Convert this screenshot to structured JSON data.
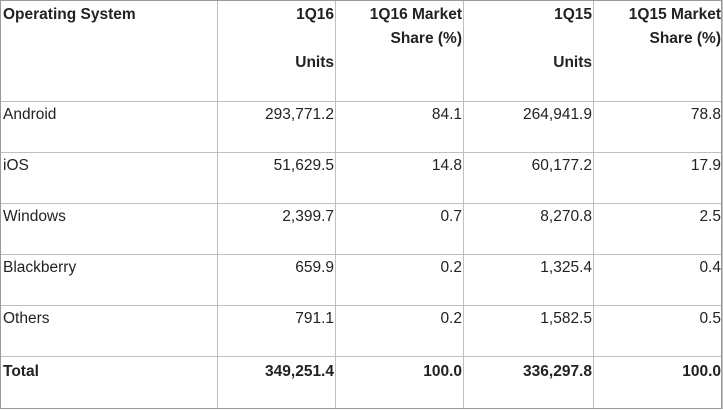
{
  "chart_data": {
    "type": "table",
    "columns": [
      {
        "line1": "Operating System",
        "line2": ""
      },
      {
        "line1": "1Q16",
        "line2": "Units"
      },
      {
        "line1": "1Q16 Market",
        "line2": "Share (%)"
      },
      {
        "line1": "1Q15",
        "line2": "Units"
      },
      {
        "line1": "1Q15 Market",
        "line2": "Share (%)"
      }
    ],
    "rows": [
      [
        "Android",
        "293,771.2",
        "84.1",
        "264,941.9",
        "78.8"
      ],
      [
        "iOS",
        "51,629.5",
        "14.8",
        "60,177.2",
        "17.9"
      ],
      [
        "Windows",
        "2,399.7",
        "0.7",
        "8,270.8",
        "2.5"
      ],
      [
        "Blackberry",
        "659.9",
        "0.2",
        "1,325.4",
        "0.4"
      ],
      [
        "Others",
        "791.1",
        "0.2",
        "1,582.5",
        "0.5"
      ]
    ],
    "total": [
      "Total",
      "349,251.4",
      "100.0",
      "336,297.8",
      "100.0"
    ]
  },
  "colors": {
    "grid": "#bfbfbf",
    "text": "#222222",
    "background": "#ffffff"
  }
}
